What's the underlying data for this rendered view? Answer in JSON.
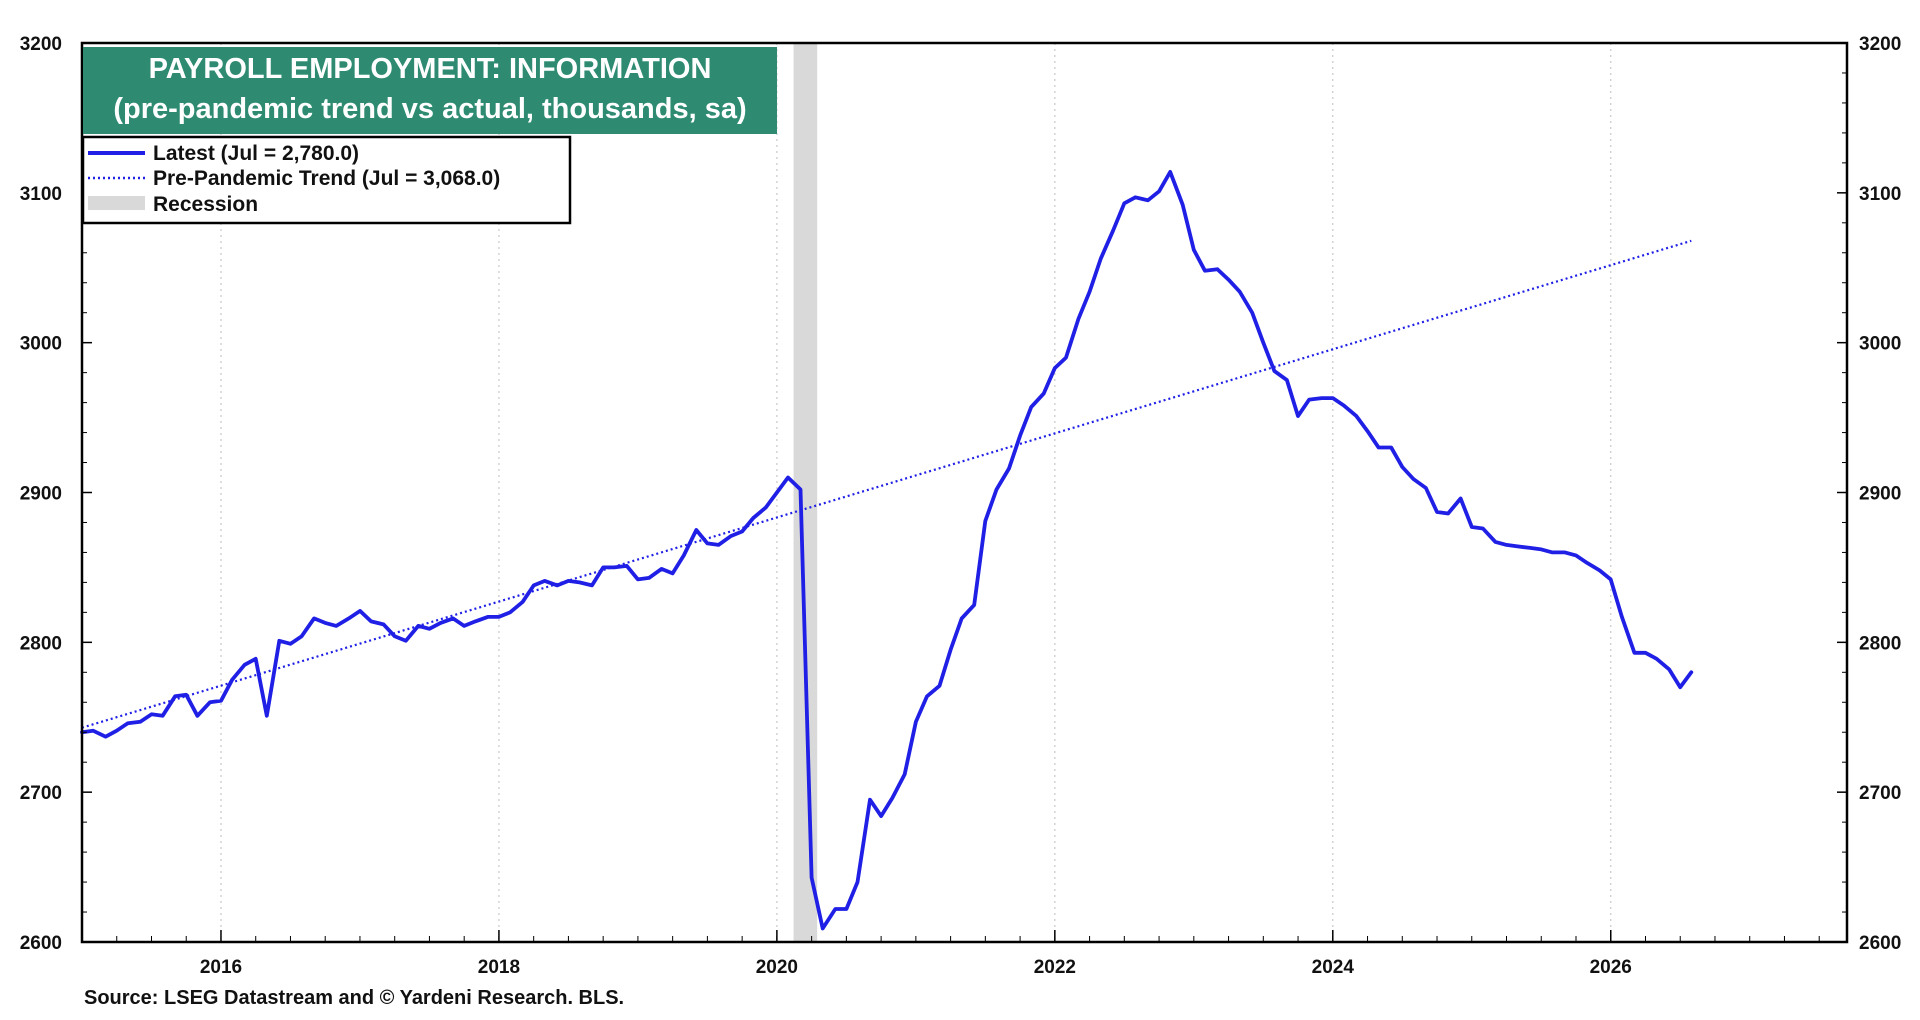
{
  "colors": {
    "line": "#1f1fe6",
    "trend": "#1f1fe6",
    "recession": "#d9d9d9",
    "title_bg": "#2e8b72",
    "title_text": "#ffffff",
    "grid": "#c8c8c8"
  },
  "title": {
    "line1": "PAYROLL EMPLOYMENT: INFORMATION",
    "line2": "(pre-pandemic trend vs actual, thousands, sa)"
  },
  "legend": {
    "latest": "Latest (Jul = 2,780.0)",
    "trend": "Pre-Pandemic Trend (Jul = 3,068.0)",
    "recession": "Recession"
  },
  "source": "Source: LSEG Datastream and © Yardeni Research. BLS.",
  "chart_data": {
    "type": "line",
    "xlim": [
      2015.0,
      2027.7
    ],
    "ylim": [
      2600,
      3200
    ],
    "x_ticks": [
      "2016",
      "2018",
      "2020",
      "2022",
      "2024",
      "2026"
    ],
    "y_ticks_left": [
      "2600",
      "2700",
      "2800",
      "2900",
      "3000",
      "3100",
      "3200"
    ],
    "y_ticks_right": [
      "2600",
      "2700",
      "2800",
      "2900",
      "3000",
      "3100",
      "3200"
    ],
    "grid": "vertical dotted at year ticks",
    "legend_placement": "top-left",
    "recession": {
      "start": 2020.12,
      "end": 2020.29
    },
    "series": [
      {
        "name": "Latest (Jul = 2,780.0)",
        "style": "solid",
        "points": [
          [
            2015.0,
            2740
          ],
          [
            2015.08,
            2741
          ],
          [
            2015.17,
            2737
          ],
          [
            2015.25,
            2741
          ],
          [
            2015.33,
            2746
          ],
          [
            2015.42,
            2747
          ],
          [
            2015.5,
            2752
          ],
          [
            2015.58,
            2751
          ],
          [
            2015.67,
            2764
          ],
          [
            2015.75,
            2765
          ],
          [
            2015.83,
            2751
          ],
          [
            2015.92,
            2760
          ],
          [
            2016.0,
            2761
          ],
          [
            2016.08,
            2775
          ],
          [
            2016.17,
            2785
          ],
          [
            2016.25,
            2789
          ],
          [
            2016.33,
            2751
          ],
          [
            2016.42,
            2801
          ],
          [
            2016.5,
            2799
          ],
          [
            2016.58,
            2804
          ],
          [
            2016.67,
            2816
          ],
          [
            2016.75,
            2813
          ],
          [
            2016.83,
            2811
          ],
          [
            2016.92,
            2816
          ],
          [
            2017.0,
            2821
          ],
          [
            2017.08,
            2814
          ],
          [
            2017.17,
            2812
          ],
          [
            2017.25,
            2804
          ],
          [
            2017.33,
            2801
          ],
          [
            2017.42,
            2811
          ],
          [
            2017.5,
            2809
          ],
          [
            2017.58,
            2813
          ],
          [
            2017.67,
            2816
          ],
          [
            2017.75,
            2811
          ],
          [
            2017.83,
            2814
          ],
          [
            2017.92,
            2817
          ],
          [
            2018.0,
            2817
          ],
          [
            2018.08,
            2820
          ],
          [
            2018.17,
            2827
          ],
          [
            2018.25,
            2838
          ],
          [
            2018.33,
            2841
          ],
          [
            2018.42,
            2838
          ],
          [
            2018.5,
            2841
          ],
          [
            2018.58,
            2840
          ],
          [
            2018.67,
            2838
          ],
          [
            2018.75,
            2850
          ],
          [
            2018.83,
            2850
          ],
          [
            2018.92,
            2851
          ],
          [
            2019.0,
            2842
          ],
          [
            2019.08,
            2843
          ],
          [
            2019.17,
            2849
          ],
          [
            2019.25,
            2846
          ],
          [
            2019.33,
            2858
          ],
          [
            2019.42,
            2875
          ],
          [
            2019.5,
            2866
          ],
          [
            2019.58,
            2865
          ],
          [
            2019.67,
            2871
          ],
          [
            2019.75,
            2874
          ],
          [
            2019.83,
            2883
          ],
          [
            2019.92,
            2890
          ],
          [
            2020.0,
            2900
          ],
          [
            2020.08,
            2910
          ],
          [
            2020.17,
            2902
          ],
          [
            2020.25,
            2643
          ],
          [
            2020.33,
            2609
          ],
          [
            2020.42,
            2622
          ],
          [
            2020.5,
            2622
          ],
          [
            2020.58,
            2640
          ],
          [
            2020.67,
            2695
          ],
          [
            2020.75,
            2684
          ],
          [
            2020.83,
            2696
          ],
          [
            2020.92,
            2712
          ],
          [
            2021.0,
            2747
          ],
          [
            2021.08,
            2764
          ],
          [
            2021.17,
            2771
          ],
          [
            2021.25,
            2795
          ],
          [
            2021.33,
            2816
          ],
          [
            2021.42,
            2825
          ],
          [
            2021.5,
            2881
          ],
          [
            2021.58,
            2902
          ],
          [
            2021.67,
            2916
          ],
          [
            2021.75,
            2938
          ],
          [
            2021.83,
            2957
          ],
          [
            2021.92,
            2966
          ],
          [
            2022.0,
            2983
          ],
          [
            2022.08,
            2990
          ],
          [
            2022.17,
            3016
          ],
          [
            2022.25,
            3034
          ],
          [
            2022.33,
            3056
          ],
          [
            2022.42,
            3075
          ],
          [
            2022.5,
            3093
          ],
          [
            2022.58,
            3097
          ],
          [
            2022.67,
            3095
          ],
          [
            2022.75,
            3101
          ],
          [
            2022.83,
            3114
          ],
          [
            2022.92,
            3092
          ],
          [
            2023.0,
            3062
          ],
          [
            2023.08,
            3048
          ],
          [
            2023.17,
            3049
          ],
          [
            2023.25,
            3042
          ],
          [
            2023.33,
            3034
          ],
          [
            2023.42,
            3020
          ],
          [
            2023.5,
            3000
          ],
          [
            2023.58,
            2981
          ],
          [
            2023.67,
            2975
          ],
          [
            2023.75,
            2951
          ],
          [
            2023.83,
            2962
          ],
          [
            2023.92,
            2963
          ],
          [
            2024.0,
            2963
          ],
          [
            2024.08,
            2958
          ],
          [
            2024.17,
            2951
          ],
          [
            2024.25,
            2941
          ],
          [
            2024.33,
            2930
          ],
          [
            2024.42,
            2930
          ],
          [
            2024.5,
            2917
          ],
          [
            2024.58,
            2909
          ],
          [
            2024.67,
            2903
          ],
          [
            2024.75,
            2887
          ],
          [
            2024.83,
            2886
          ],
          [
            2024.92,
            2896
          ],
          [
            2025.0,
            2877
          ],
          [
            2025.08,
            2876
          ],
          [
            2025.17,
            2867
          ],
          [
            2025.25,
            2865
          ],
          [
            2025.33,
            2864
          ],
          [
            2025.42,
            2863
          ],
          [
            2025.5,
            2862
          ],
          [
            2025.58,
            2860
          ],
          [
            2025.67,
            2860
          ],
          [
            2025.75,
            2858
          ],
          [
            2025.83,
            2853
          ],
          [
            2025.92,
            2848
          ],
          [
            2026.0,
            2842
          ],
          [
            2026.08,
            2817
          ],
          [
            2026.17,
            2793
          ],
          [
            2026.25,
            2793
          ],
          [
            2026.33,
            2789
          ],
          [
            2026.42,
            2782
          ],
          [
            2026.5,
            2770
          ],
          [
            2026.58,
            2780
          ]
        ]
      },
      {
        "name": "Pre-Pandemic Trend (Jul = 3,068.0)",
        "style": "dotted",
        "points": [
          [
            2015.0,
            2743
          ],
          [
            2026.58,
            3068
          ]
        ]
      }
    ]
  }
}
